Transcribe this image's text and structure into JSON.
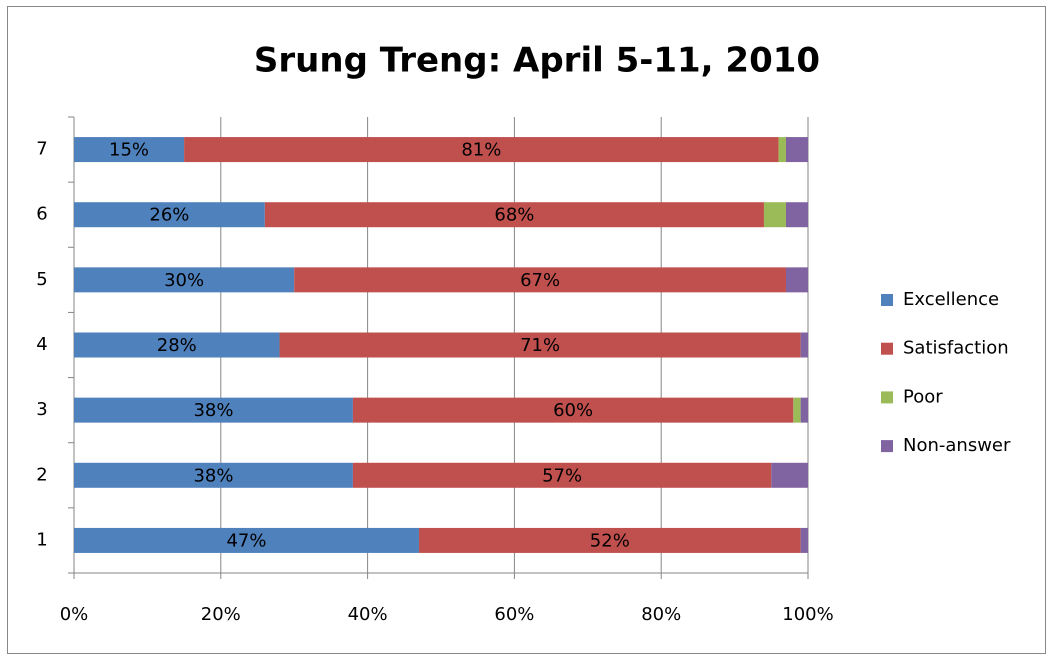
{
  "chart_data": {
    "type": "stacked_barh",
    "title": "Srung Treng: April 5-11, 2010",
    "categories": [
      "1",
      "2",
      "3",
      "4",
      "5",
      "6",
      "7"
    ],
    "series": [
      {
        "name": "Excellence",
        "color": "#4f81bd",
        "values": [
          47,
          38,
          38,
          28,
          30,
          26,
          15
        ],
        "value_labels": [
          "47%",
          "38%",
          "38%",
          "28%",
          "30%",
          "26%",
          "15%"
        ]
      },
      {
        "name": "Satisfaction",
        "color": "#c0504d",
        "values": [
          52,
          57,
          60,
          71,
          67,
          68,
          81
        ],
        "value_labels": [
          "52%",
          "57%",
          "60%",
          "71%",
          "67%",
          "68%",
          "81%"
        ]
      },
      {
        "name": "Poor",
        "color": "#9bbb59",
        "values": [
          0,
          0,
          1,
          0,
          0,
          3,
          1
        ]
      },
      {
        "name": "Non-answer",
        "color": "#8064a2",
        "values": [
          1,
          5,
          1,
          1,
          3,
          3,
          3
        ]
      }
    ],
    "xlim": [
      0,
      100
    ],
    "xticks": [
      {
        "value": 0,
        "label": "0%"
      },
      {
        "value": 20,
        "label": "20%"
      },
      {
        "value": 40,
        "label": "40%"
      },
      {
        "value": 60,
        "label": "60%"
      },
      {
        "value": 80,
        "label": "80%"
      },
      {
        "value": 100,
        "label": "100%"
      }
    ],
    "grid": true,
    "legend": "right"
  }
}
